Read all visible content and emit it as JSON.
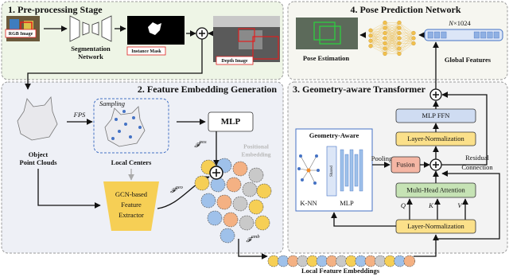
{
  "preprocessing": {
    "title": "1. Pre-processing Stage",
    "rgb_label": "RGB Image",
    "segmentation": [
      "Segmentation",
      "Network"
    ],
    "mask_label": "Instance Mask",
    "depth_label": "Depth Image"
  },
  "pose_prediction": {
    "title": "4. Pose Prediction Network",
    "pose_label": "Pose Estimation",
    "global_dim": {
      "symbol": "N",
      "rest": "×1024"
    },
    "global_label": "Global Features"
  },
  "feature_embedding": {
    "title": "2. Feature Embedding Generation",
    "fps": "FPS",
    "sampling": "Sampling",
    "object_point_clouds": [
      "Object",
      "Point Clouds"
    ],
    "local_centers": "Local Centers",
    "mlp": "MLP",
    "f_pos": {
      "symbol": "𝓕",
      "sup": "pos"
    },
    "positional_embedding": [
      "Positional",
      "Embedding"
    ],
    "f_geo": {
      "symbol": "𝓕",
      "sup": "geo"
    },
    "f_emb": {
      "symbol": "𝓕",
      "sup": "emb"
    },
    "gcn": [
      "GCN-based",
      "Feature",
      "Extractor"
    ]
  },
  "transformer": {
    "title": "3. Geometry-aware Transformer",
    "geometry_aware": "Geometry-Aware",
    "shared": "Shared",
    "knn": "K-NN",
    "mlp": "MLP",
    "pooling": "Pooling",
    "fusion": "Fusion",
    "mlp_ffn": "MLP FFN",
    "layer_norm_top": "Layer-Normalization",
    "attention": "Multi-Head Attention",
    "layer_norm_bottom": "Layer-Normalization",
    "q": "Q",
    "k": "K",
    "v": "V",
    "residual": [
      "Residual",
      "Connection"
    ]
  },
  "footer": {
    "label": "Local Feature Embeddings"
  }
}
